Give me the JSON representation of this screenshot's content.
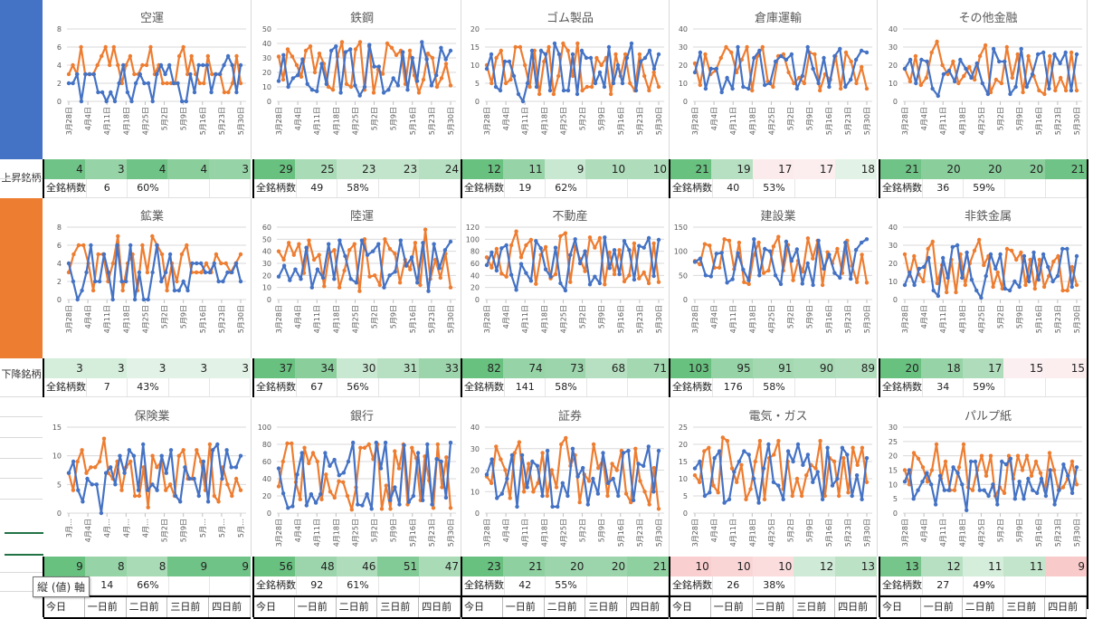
{
  "row_labels": {
    "up": "上昇銘柄",
    "down": "下降銘柄"
  },
  "colors": {
    "blue_series": "#4472c4",
    "orange_series": "#ed7d31",
    "heat_dark": "#63be7b",
    "heat_light": "#e2f2e6",
    "heat_red": "#f8b9b9"
  },
  "total_label": "全銘柄数",
  "day_labels": [
    "今日",
    "一日前",
    "二日前",
    "三日前",
    "四日前"
  ],
  "tooltip": "縦 (値) 軸",
  "x_ticks": [
    "3月28日",
    "4月4日",
    "4月11日",
    "4月18日",
    "4月25日",
    "5月2日",
    "5月9日",
    "5月16日",
    "5月23日",
    "5月30日"
  ],
  "x_ticks_insurance": [
    "3月…",
    "4月4日",
    "4月…",
    "4月…",
    "4月…",
    "5月2日",
    "5月9日",
    "5月…",
    "5月…",
    "5月…"
  ],
  "sectors": [
    {
      "name": "空運",
      "counts": [
        4,
        3,
        4,
        4,
        3
      ],
      "heat": [
        0.9,
        0.6,
        0.9,
        0.7,
        0.6
      ],
      "total": "6",
      "pct": "60%",
      "yticks": [
        "0",
        "2",
        "4",
        "6",
        "8"
      ],
      "ymax": 8,
      "blue": [
        2,
        2,
        3,
        0,
        3,
        3,
        3,
        1,
        1,
        0,
        1,
        0,
        2,
        4,
        1,
        0,
        2,
        3,
        2,
        2,
        0,
        3,
        4,
        3,
        4,
        2,
        2,
        0,
        0,
        3,
        1,
        4,
        4,
        4,
        1,
        3,
        3,
        4,
        5,
        4,
        1,
        4
      ],
      "orange": [
        3,
        4,
        3,
        6,
        3,
        3,
        3,
        4,
        5,
        6,
        4,
        6,
        4,
        2,
        4,
        5,
        3,
        3,
        4,
        4,
        6,
        3,
        4,
        2,
        2,
        2,
        2,
        5,
        6,
        3,
        5,
        3,
        2,
        2,
        5,
        3,
        3,
        3,
        1,
        1,
        2,
        5,
        2
      ]
    },
    {
      "name": "鉄鋼",
      "counts": [
        29,
        25,
        23,
        23,
        24
      ],
      "heat": [
        0.95,
        0.45,
        0.25,
        0.25,
        0.35
      ],
      "total": "49",
      "pct": "58%",
      "yticks": [
        "0",
        "10",
        "20",
        "30",
        "40",
        "50"
      ],
      "ymax": 50,
      "blue": [
        14,
        32,
        10,
        16,
        18,
        29,
        12,
        8,
        7,
        26,
        12,
        35,
        38,
        6,
        34,
        36,
        11,
        4,
        10,
        39,
        24,
        24,
        6,
        8,
        16,
        11,
        34,
        8,
        30,
        14,
        41,
        29,
        11,
        18,
        37,
        29,
        35
      ],
      "orange": [
        31,
        15,
        36,
        31,
        25,
        17,
        35,
        38,
        20,
        33,
        26,
        10,
        8,
        31,
        41,
        12,
        10,
        36,
        41,
        8,
        38,
        6,
        22,
        19,
        40,
        37,
        32,
        35,
        12,
        35,
        18,
        6,
        15,
        33,
        30,
        10,
        16,
        26,
        11
      ]
    },
    {
      "name": "ゴム製品",
      "counts": [
        12,
        11,
        9,
        10,
        10
      ],
      "heat": [
        0.95,
        0.6,
        0.2,
        0.4,
        0.4
      ],
      "total": "19",
      "pct": "62%",
      "yticks": [
        "0",
        "5",
        "10",
        "15",
        "20"
      ],
      "ymax": 20,
      "blue": [
        9,
        13,
        4,
        3,
        11,
        11,
        7,
        2,
        0,
        5,
        14,
        4,
        14,
        13,
        3,
        16,
        13,
        3,
        3,
        13,
        2,
        14,
        12,
        12,
        5,
        8,
        4,
        15,
        5,
        10,
        5,
        12,
        16,
        3,
        11,
        12,
        14,
        9,
        13
      ],
      "orange": [
        10,
        5,
        12,
        14,
        5,
        6,
        15,
        15,
        10,
        4,
        14,
        2,
        11,
        15,
        2,
        7,
        16,
        14,
        7,
        16,
        3,
        4,
        4,
        12,
        10,
        12,
        2,
        13,
        7,
        13,
        5,
        3,
        13,
        7,
        3,
        8,
        4
      ]
    },
    {
      "name": "倉庫運輸",
      "counts": [
        21,
        19,
        17,
        17,
        18
      ],
      "heat": [
        0.95,
        0.35,
        -0.1,
        -0.05,
        0.0
      ],
      "total": "40",
      "pct": "53%",
      "yticks": [
        "0",
        "10",
        "20",
        "30",
        "40"
      ],
      "ymax": 40,
      "blue": [
        16,
        27,
        7,
        18,
        18,
        5,
        13,
        7,
        30,
        8,
        7,
        24,
        28,
        9,
        10,
        22,
        25,
        23,
        26,
        7,
        14,
        30,
        18,
        10,
        24,
        8,
        25,
        29,
        8,
        12,
        23,
        28,
        27
      ],
      "orange": [
        21,
        9,
        26,
        15,
        17,
        24,
        30,
        27,
        16,
        23,
        30,
        6,
        25,
        30,
        11,
        8,
        25,
        26,
        16,
        10,
        13,
        10,
        27,
        26,
        6,
        15,
        12,
        25,
        7,
        27,
        22,
        10,
        19,
        7
      ]
    },
    {
      "name": "その他金融",
      "counts": [
        21,
        20,
        20,
        20,
        21
      ],
      "heat": [
        0.9,
        0.7,
        0.7,
        0.7,
        0.9
      ],
      "total": "36",
      "pct": "59%",
      "yticks": [
        "0",
        "10",
        "20",
        "30",
        "40"
      ],
      "ymax": 40,
      "blue": [
        18,
        23,
        10,
        23,
        22,
        7,
        3,
        15,
        17,
        11,
        23,
        18,
        13,
        21,
        10,
        4,
        29,
        22,
        22,
        4,
        8,
        29,
        8,
        15,
        26,
        27,
        7,
        26,
        21,
        27,
        6,
        26
      ],
      "orange": [
        18,
        11,
        25,
        9,
        13,
        27,
        33,
        20,
        15,
        22,
        10,
        14,
        19,
        12,
        25,
        31,
        5,
        12,
        10,
        30,
        13,
        26,
        5,
        25,
        14,
        6,
        4,
        25,
        6,
        13,
        6,
        27,
        6
      ]
    },
    {
      "name": "鉱業",
      "counts": [
        3,
        3,
        3,
        3,
        3
      ],
      "heat": [
        0.1,
        0.1,
        0.0,
        0.0,
        0.0
      ],
      "total": "7",
      "pct": "43%",
      "yticks": [
        "0",
        "2",
        "4",
        "6",
        "8"
      ],
      "ymax": 8,
      "blue": [
        4,
        2,
        0,
        1,
        3,
        6,
        2,
        2,
        5,
        3,
        0,
        6,
        2,
        2,
        6,
        0,
        3,
        0,
        0,
        3,
        6,
        2,
        3,
        5,
        1,
        1,
        2,
        1,
        4,
        4,
        4,
        3,
        3,
        4,
        2,
        2,
        3,
        3,
        4,
        2
      ],
      "orange": [
        3,
        5,
        6,
        6,
        4,
        1,
        5,
        5,
        2,
        4,
        7,
        1,
        4,
        5,
        1,
        6,
        3,
        7,
        6,
        5,
        1,
        4,
        2,
        5,
        6,
        3,
        3,
        3,
        4,
        3,
        5,
        4,
        4,
        3,
        4,
        5
      ]
    },
    {
      "name": "陸運",
      "counts": [
        37,
        34,
        30,
        31,
        33
      ],
      "heat": [
        0.95,
        0.7,
        0.2,
        0.35,
        0.55
      ],
      "total": "67",
      "pct": "56%",
      "yticks": [
        "0",
        "10",
        "20",
        "30",
        "40",
        "50",
        "60"
      ],
      "ymax": 60,
      "blue": [
        19,
        28,
        16,
        25,
        17,
        43,
        10,
        25,
        18,
        46,
        17,
        49,
        36,
        17,
        14,
        49,
        37,
        40,
        46,
        10,
        20,
        23,
        49,
        28,
        35,
        14,
        47,
        7,
        46,
        26,
        41,
        48
      ],
      "orange": [
        40,
        33,
        47,
        37,
        46,
        22,
        49,
        33,
        37,
        11,
        38,
        41,
        10,
        24,
        41,
        46,
        7,
        50,
        19,
        20,
        12,
        50,
        42,
        38,
        14,
        33,
        25,
        47,
        12,
        58,
        17,
        33,
        18,
        38,
        10
      ]
    },
    {
      "name": "不動産",
      "counts": [
        82,
        74,
        73,
        68,
        71
      ],
      "heat": [
        0.95,
        0.6,
        0.55,
        0.35,
        0.5
      ],
      "total": "141",
      "pct": "58%",
      "yticks": [
        "0",
        "20",
        "40",
        "60",
        "80",
        "100",
        "120"
      ],
      "ymax": 120,
      "blue": [
        57,
        78,
        48,
        85,
        90,
        41,
        16,
        59,
        44,
        31,
        97,
        85,
        50,
        38,
        86,
        27,
        15,
        74,
        100,
        60,
        80,
        25,
        38,
        27,
        103,
        52,
        82,
        42,
        97,
        82,
        33,
        89,
        86,
        102,
        39,
        99
      ],
      "orange": [
        70,
        53,
        84,
        43,
        38,
        90,
        113,
        70,
        90,
        99,
        26,
        74,
        87,
        35,
        42,
        105,
        110,
        29,
        88,
        67,
        47,
        103,
        86,
        102,
        25,
        78,
        42,
        82,
        30,
        40,
        93,
        35,
        45,
        27,
        93,
        29
      ]
    },
    {
      "name": "建設業",
      "counts": [
        103,
        95,
        91,
        90,
        89
      ],
      "heat": [
        0.95,
        0.6,
        0.5,
        0.45,
        0.4
      ],
      "total": "176",
      "pct": "58%",
      "yticks": [
        "0",
        "50",
        "100",
        "150"
      ],
      "ymax": 150,
      "blue": [
        78,
        85,
        50,
        48,
        95,
        97,
        35,
        42,
        96,
        62,
        40,
        125,
        50,
        105,
        100,
        50,
        32,
        120,
        80,
        104,
        33,
        75,
        30,
        122,
        64,
        93,
        55,
        45,
        118,
        43,
        103,
        118,
        125
      ],
      "orange": [
        80,
        73,
        115,
        112,
        66,
        66,
        125,
        122,
        63,
        118,
        36,
        32,
        92,
        118,
        55,
        60,
        110,
        130,
        60,
        113,
        40,
        80,
        58,
        127,
        85,
        122,
        30,
        98,
        75,
        105,
        55,
        122,
        70,
        36,
        93,
        35
      ]
    },
    {
      "name": "非鉄金属",
      "counts": [
        20,
        18,
        17,
        15,
        15
      ],
      "heat": [
        0.95,
        0.6,
        0.4,
        -0.02,
        -0.05
      ],
      "total": "34",
      "pct": "59%",
      "yticks": [
        "0",
        "10",
        "20",
        "30",
        "40"
      ],
      "ymax": 40,
      "blue": [
        8,
        15,
        8,
        17,
        18,
        23,
        5,
        2,
        23,
        12,
        29,
        30,
        12,
        26,
        11,
        5,
        1,
        13,
        25,
        17,
        25,
        6,
        5,
        10,
        7,
        24,
        10,
        26,
        11,
        25,
        18,
        10,
        13,
        28,
        28,
        7,
        24
      ],
      "orange": [
        25,
        13,
        24,
        14,
        10,
        28,
        32,
        9,
        19,
        4,
        22,
        4,
        25,
        8,
        20,
        27,
        33,
        19,
        24,
        7,
        15,
        6,
        28,
        27,
        22,
        26,
        8,
        22,
        6,
        22,
        7,
        13,
        21,
        24,
        5,
        5,
        18,
        8
      ]
    },
    {
      "name": "保険業",
      "counts": [
        9,
        8,
        8,
        9,
        9
      ],
      "heat": [
        0.95,
        0.6,
        0.45,
        0.9,
        0.9
      ],
      "total": "14",
      "pct": "66%",
      "yticks": [
        "0",
        "5",
        "10",
        "15"
      ],
      "ymax": 15,
      "blue": [
        7,
        9,
        4,
        2,
        6,
        5,
        5,
        0,
        7,
        8,
        5,
        10,
        7,
        11,
        10,
        4,
        12,
        4,
        5,
        4,
        10,
        7,
        11,
        3,
        2,
        8,
        6,
        6,
        3,
        9,
        2,
        11,
        12,
        6,
        11,
        8,
        8,
        10
      ],
      "orange": [
        7,
        4,
        9,
        11,
        7,
        8,
        8,
        9,
        13,
        7,
        6,
        9,
        4,
        8,
        9,
        3,
        3,
        8,
        1,
        10,
        8,
        9,
        4,
        5,
        3,
        10,
        11,
        6,
        6,
        11,
        9,
        4,
        12,
        3,
        2,
        8,
        5,
        3,
        6,
        4
      ]
    },
    {
      "name": "銀行",
      "counts": [
        56,
        48,
        46,
        51,
        47
      ],
      "heat": [
        0.95,
        0.55,
        0.4,
        0.75,
        0.45
      ],
      "total": "92",
      "pct": "61%",
      "yticks": [
        "0",
        "20",
        "40",
        "60",
        "80",
        "100"
      ],
      "ymax": 100,
      "blue": [
        52,
        23,
        6,
        8,
        45,
        70,
        9,
        22,
        12,
        22,
        70,
        55,
        62,
        44,
        47,
        60,
        82,
        10,
        9,
        22,
        5,
        82,
        52,
        82,
        15,
        30,
        10,
        79,
        13,
        20,
        70,
        15,
        80,
        10,
        63,
        60,
        18,
        82
      ],
      "orange": [
        31,
        60,
        81,
        81,
        36,
        16,
        76,
        58,
        70,
        60,
        16,
        45,
        25,
        18,
        37,
        36,
        20,
        4,
        30,
        76,
        76,
        80,
        63,
        80,
        5,
        32,
        5,
        72,
        52,
        80,
        10,
        76,
        64,
        15,
        66,
        38,
        6,
        80,
        30,
        65,
        6
      ]
    },
    {
      "name": "証券",
      "counts": [
        23,
        21,
        20,
        20,
        21
      ],
      "heat": [
        0.95,
        0.65,
        0.55,
        0.55,
        0.65
      ],
      "total": "42",
      "pct": "55%",
      "yticks": [
        "0",
        "10",
        "20",
        "30",
        "40"
      ],
      "ymax": 40,
      "blue": [
        18,
        25,
        7,
        9,
        16,
        27,
        3,
        27,
        12,
        24,
        22,
        8,
        29,
        3,
        3,
        14,
        8,
        30,
        17,
        21,
        4,
        16,
        9,
        28,
        14,
        16,
        8,
        28,
        29,
        6,
        23,
        22,
        31,
        10,
        29
      ],
      "orange": [
        17,
        14,
        31,
        25,
        20,
        7,
        28,
        33,
        10,
        23,
        10,
        14,
        28,
        8,
        20,
        12,
        32,
        35,
        22,
        27,
        5,
        18,
        15,
        32,
        21,
        25,
        8,
        23,
        20,
        29,
        9,
        5,
        30,
        15,
        10,
        4,
        21,
        2
      ]
    },
    {
      "name": "電気・ガス",
      "counts": [
        10,
        10,
        10,
        12,
        13
      ],
      "heat": [
        -0.6,
        -0.5,
        -0.35,
        0.15,
        0.3
      ],
      "total": "26",
      "pct": "38%",
      "yticks": [
        "0",
        "5",
        "10",
        "15",
        "20",
        "25"
      ],
      "ymax": 25,
      "blue": [
        13,
        15,
        5,
        6,
        16,
        18,
        3,
        4,
        12,
        15,
        18,
        17,
        10,
        3,
        13,
        20,
        9,
        8,
        4,
        18,
        15,
        20,
        14,
        17,
        9,
        12,
        4,
        19,
        8,
        10,
        19,
        17,
        5,
        11,
        4,
        16
      ],
      "orange": [
        11,
        9,
        18,
        19,
        8,
        6,
        22,
        21,
        13,
        9,
        14,
        4,
        7,
        15,
        21,
        4,
        16,
        17,
        21,
        7,
        15,
        5,
        10,
        5,
        11,
        14,
        13,
        21,
        5,
        16,
        15,
        5,
        16,
        6,
        19,
        14,
        19,
        9
      ]
    },
    {
      "name": "パルプ紙",
      "counts": [
        13,
        12,
        11,
        11,
        9
      ],
      "heat": [
        0.85,
        0.35,
        0.1,
        0.25,
        -0.7
      ],
      "total": "27",
      "pct": "49%",
      "yticks": [
        "0",
        "5",
        "10",
        "15",
        "20",
        "25",
        "30"
      ],
      "ymax": 30,
      "blue": [
        11,
        15,
        5,
        8,
        11,
        14,
        10,
        3,
        13,
        8,
        8,
        16,
        14,
        10,
        1,
        18,
        18,
        8,
        8,
        6,
        10,
        3,
        18,
        17,
        19,
        5,
        11,
        5,
        12,
        8,
        7,
        12,
        6,
        15,
        3,
        8,
        17,
        13,
        7,
        16
      ],
      "orange": [
        15,
        10,
        21,
        19,
        16,
        11,
        15,
        24,
        12,
        18,
        8,
        8,
        16,
        24,
        9,
        8,
        15,
        20,
        13,
        20,
        6,
        9,
        7,
        20,
        12,
        20,
        15,
        20,
        13,
        18,
        14,
        8,
        21,
        15,
        8,
        9,
        12,
        18,
        10
      ]
    }
  ]
}
